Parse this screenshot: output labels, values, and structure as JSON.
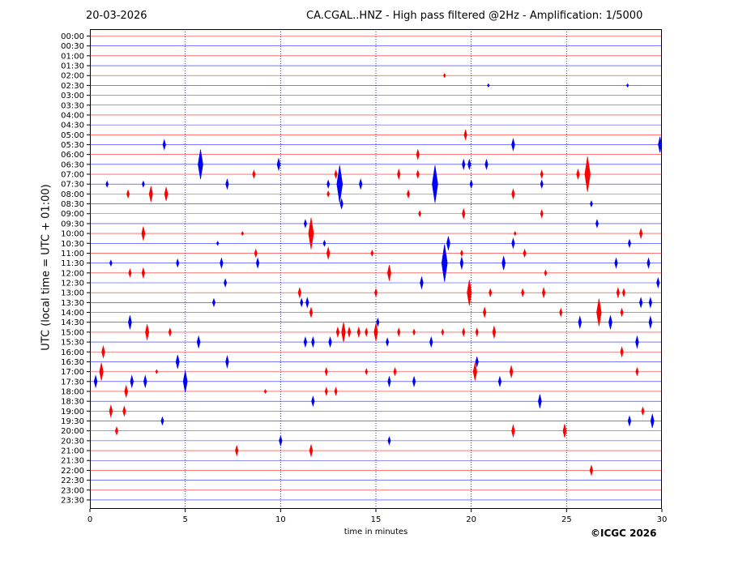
{
  "header": {
    "date": "20-03-2026",
    "title": "CA.CGAL..HNZ - High pass filtered @2Hz - Amplification: 1/5000"
  },
  "footer": {
    "copyright": "©ICGC 2026"
  },
  "chart_data": {
    "type": "line",
    "subtype": "helicorder",
    "xlabel": "time in minutes",
    "ylabel": "UTC (local time = UTC + 01:00)",
    "xlim": [
      0,
      30
    ],
    "xticks": [
      0,
      5,
      10,
      15,
      20,
      25,
      30
    ],
    "vertical_gridlines": [
      5,
      10,
      15,
      20,
      25
    ],
    "grid": true,
    "trace_colors": [
      "#ff0000",
      "#0000ff"
    ],
    "rows": [
      "00:00",
      "00:30",
      "01:00",
      "01:30",
      "02:00",
      "02:30",
      "03:00",
      "03:30",
      "04:00",
      "04:30",
      "05:00",
      "05:30",
      "06:00",
      "06:30",
      "07:00",
      "07:30",
      "08:00",
      "08:30",
      "09:00",
      "09:30",
      "10:00",
      "10:30",
      "11:00",
      "11:30",
      "12:00",
      "12:30",
      "13:00",
      "13:30",
      "14:00",
      "14:30",
      "15:00",
      "15:30",
      "16:00",
      "16:30",
      "17:00",
      "17:30",
      "18:00",
      "18:30",
      "19:00",
      "19:30",
      "20:00",
      "20:30",
      "21:00",
      "21:30",
      "22:00",
      "22:30",
      "23:00",
      "23:30"
    ],
    "events": [
      {
        "row": 4,
        "t": 18.6,
        "amp": 0.2
      },
      {
        "row": 5,
        "t": 20.9,
        "amp": 0.1
      },
      {
        "row": 5,
        "t": 28.2,
        "amp": 0.1
      },
      {
        "row": 10,
        "t": 19.7,
        "amp": 0.5
      },
      {
        "row": 11,
        "t": 3.9,
        "amp": 0.5
      },
      {
        "row": 11,
        "t": 22.2,
        "amp": 0.6
      },
      {
        "row": 11,
        "t": 29.9,
        "amp": 0.8
      },
      {
        "row": 12,
        "t": 17.2,
        "amp": 0.5
      },
      {
        "row": 13,
        "t": 5.8,
        "amp": 1.5
      },
      {
        "row": 13,
        "t": 9.9,
        "amp": 0.6
      },
      {
        "row": 13,
        "t": 19.6,
        "amp": 0.5
      },
      {
        "row": 13,
        "t": 19.9,
        "amp": 0.5
      },
      {
        "row": 13,
        "t": 20.8,
        "amp": 0.5
      },
      {
        "row": 14,
        "t": 8.6,
        "amp": 0.4
      },
      {
        "row": 14,
        "t": 12.9,
        "amp": 0.4
      },
      {
        "row": 14,
        "t": 16.2,
        "amp": 0.5
      },
      {
        "row": 14,
        "t": 17.2,
        "amp": 0.4
      },
      {
        "row": 14,
        "t": 23.7,
        "amp": 0.4
      },
      {
        "row": 14,
        "t": 25.6,
        "amp": 0.5
      },
      {
        "row": 14,
        "t": 26.1,
        "amp": 1.8
      },
      {
        "row": 15,
        "t": 0.9,
        "amp": 0.3
      },
      {
        "row": 15,
        "t": 2.8,
        "amp": 0.3
      },
      {
        "row": 15,
        "t": 7.2,
        "amp": 0.5
      },
      {
        "row": 15,
        "t": 12.5,
        "amp": 0.4
      },
      {
        "row": 15,
        "t": 13.1,
        "amp": 1.9
      },
      {
        "row": 15,
        "t": 14.2,
        "amp": 0.5
      },
      {
        "row": 15,
        "t": 18.1,
        "amp": 1.9
      },
      {
        "row": 15,
        "t": 20.0,
        "amp": 0.4
      },
      {
        "row": 15,
        "t": 23.7,
        "amp": 0.4
      },
      {
        "row": 16,
        "t": 2.0,
        "amp": 0.4
      },
      {
        "row": 16,
        "t": 3.2,
        "amp": 0.8
      },
      {
        "row": 16,
        "t": 4.0,
        "amp": 0.7
      },
      {
        "row": 16,
        "t": 12.5,
        "amp": 0.3
      },
      {
        "row": 16,
        "t": 16.7,
        "amp": 0.4
      },
      {
        "row": 16,
        "t": 22.2,
        "amp": 0.5
      },
      {
        "row": 17,
        "t": 13.2,
        "amp": 0.5
      },
      {
        "row": 17,
        "t": 26.3,
        "amp": 0.3
      },
      {
        "row": 18,
        "t": 17.3,
        "amp": 0.3
      },
      {
        "row": 18,
        "t": 19.6,
        "amp": 0.5
      },
      {
        "row": 18,
        "t": 23.7,
        "amp": 0.4
      },
      {
        "row": 19,
        "t": 11.3,
        "amp": 0.4
      },
      {
        "row": 19,
        "t": 26.6,
        "amp": 0.4
      },
      {
        "row": 20,
        "t": 2.8,
        "amp": 0.7
      },
      {
        "row": 20,
        "t": 8.0,
        "amp": 0.2
      },
      {
        "row": 20,
        "t": 11.6,
        "amp": 1.6
      },
      {
        "row": 20,
        "t": 22.3,
        "amp": 0.2
      },
      {
        "row": 20,
        "t": 28.9,
        "amp": 0.5
      },
      {
        "row": 21,
        "t": 6.7,
        "amp": 0.2
      },
      {
        "row": 21,
        "t": 12.3,
        "amp": 0.3
      },
      {
        "row": 21,
        "t": 18.8,
        "amp": 0.7
      },
      {
        "row": 21,
        "t": 22.2,
        "amp": 0.5
      },
      {
        "row": 21,
        "t": 28.3,
        "amp": 0.4
      },
      {
        "row": 22,
        "t": 8.7,
        "amp": 0.4
      },
      {
        "row": 22,
        "t": 12.5,
        "amp": 0.6
      },
      {
        "row": 22,
        "t": 14.8,
        "amp": 0.3
      },
      {
        "row": 22,
        "t": 19.5,
        "amp": 0.3
      },
      {
        "row": 22,
        "t": 22.8,
        "amp": 0.4
      },
      {
        "row": 23,
        "t": 1.1,
        "amp": 0.3
      },
      {
        "row": 23,
        "t": 4.6,
        "amp": 0.4
      },
      {
        "row": 23,
        "t": 6.9,
        "amp": 0.5
      },
      {
        "row": 23,
        "t": 8.8,
        "amp": 0.5
      },
      {
        "row": 23,
        "t": 18.6,
        "amp": 1.9
      },
      {
        "row": 23,
        "t": 19.5,
        "amp": 0.6
      },
      {
        "row": 23,
        "t": 21.7,
        "amp": 0.7
      },
      {
        "row": 23,
        "t": 27.6,
        "amp": 0.5
      },
      {
        "row": 23,
        "t": 29.3,
        "amp": 0.5
      },
      {
        "row": 24,
        "t": 2.1,
        "amp": 0.4
      },
      {
        "row": 24,
        "t": 2.8,
        "amp": 0.5
      },
      {
        "row": 24,
        "t": 15.7,
        "amp": 0.8
      },
      {
        "row": 24,
        "t": 23.9,
        "amp": 0.3
      },
      {
        "row": 25,
        "t": 7.1,
        "amp": 0.4
      },
      {
        "row": 25,
        "t": 17.4,
        "amp": 0.6
      },
      {
        "row": 25,
        "t": 29.8,
        "amp": 0.5
      },
      {
        "row": 26,
        "t": 11.0,
        "amp": 0.5
      },
      {
        "row": 26,
        "t": 15.0,
        "amp": 0.4
      },
      {
        "row": 26,
        "t": 19.9,
        "amp": 1.3
      },
      {
        "row": 26,
        "t": 21.0,
        "amp": 0.4
      },
      {
        "row": 26,
        "t": 22.7,
        "amp": 0.4
      },
      {
        "row": 26,
        "t": 23.8,
        "amp": 0.5
      },
      {
        "row": 26,
        "t": 27.7,
        "amp": 0.5
      },
      {
        "row": 26,
        "t": 28.0,
        "amp": 0.4
      },
      {
        "row": 27,
        "t": 6.5,
        "amp": 0.4
      },
      {
        "row": 27,
        "t": 11.1,
        "amp": 0.4
      },
      {
        "row": 27,
        "t": 11.4,
        "amp": 0.5
      },
      {
        "row": 27,
        "t": 28.9,
        "amp": 0.5
      },
      {
        "row": 27,
        "t": 29.4,
        "amp": 0.5
      },
      {
        "row": 28,
        "t": 11.6,
        "amp": 0.5
      },
      {
        "row": 28,
        "t": 20.7,
        "amp": 0.5
      },
      {
        "row": 28,
        "t": 24.7,
        "amp": 0.4
      },
      {
        "row": 28,
        "t": 26.7,
        "amp": 1.4
      },
      {
        "row": 28,
        "t": 27.9,
        "amp": 0.4
      },
      {
        "row": 29,
        "t": 2.1,
        "amp": 0.7
      },
      {
        "row": 29,
        "t": 15.1,
        "amp": 0.4
      },
      {
        "row": 29,
        "t": 25.7,
        "amp": 0.6
      },
      {
        "row": 29,
        "t": 27.3,
        "amp": 0.7
      },
      {
        "row": 29,
        "t": 29.4,
        "amp": 0.6
      },
      {
        "row": 30,
        "t": 3.0,
        "amp": 0.8
      },
      {
        "row": 30,
        "t": 4.2,
        "amp": 0.4
      },
      {
        "row": 30,
        "t": 13.0,
        "amp": 0.5
      },
      {
        "row": 30,
        "t": 13.3,
        "amp": 1.0
      },
      {
        "row": 30,
        "t": 13.6,
        "amp": 0.5
      },
      {
        "row": 30,
        "t": 14.1,
        "amp": 0.5
      },
      {
        "row": 30,
        "t": 14.5,
        "amp": 0.4
      },
      {
        "row": 30,
        "t": 15.0,
        "amp": 0.9
      },
      {
        "row": 30,
        "t": 16.2,
        "amp": 0.4
      },
      {
        "row": 30,
        "t": 17.0,
        "amp": 0.3
      },
      {
        "row": 30,
        "t": 18.5,
        "amp": 0.3
      },
      {
        "row": 30,
        "t": 19.6,
        "amp": 0.4
      },
      {
        "row": 30,
        "t": 20.3,
        "amp": 0.4
      },
      {
        "row": 30,
        "t": 21.2,
        "amp": 0.6
      },
      {
        "row": 31,
        "t": 5.7,
        "amp": 0.6
      },
      {
        "row": 31,
        "t": 11.3,
        "amp": 0.5
      },
      {
        "row": 31,
        "t": 11.7,
        "amp": 0.5
      },
      {
        "row": 31,
        "t": 12.6,
        "amp": 0.5
      },
      {
        "row": 31,
        "t": 15.6,
        "amp": 0.4
      },
      {
        "row": 31,
        "t": 17.9,
        "amp": 0.5
      },
      {
        "row": 31,
        "t": 28.7,
        "amp": 0.6
      },
      {
        "row": 32,
        "t": 0.7,
        "amp": 0.6
      },
      {
        "row": 32,
        "t": 27.9,
        "amp": 0.5
      },
      {
        "row": 33,
        "t": 4.6,
        "amp": 0.7
      },
      {
        "row": 33,
        "t": 7.2,
        "amp": 0.6
      },
      {
        "row": 33,
        "t": 20.3,
        "amp": 0.5
      },
      {
        "row": 34,
        "t": 0.6,
        "amp": 0.9
      },
      {
        "row": 34,
        "t": 3.5,
        "amp": 0.2
      },
      {
        "row": 34,
        "t": 12.4,
        "amp": 0.4
      },
      {
        "row": 34,
        "t": 14.5,
        "amp": 0.3
      },
      {
        "row": 34,
        "t": 16.0,
        "amp": 0.4
      },
      {
        "row": 34,
        "t": 20.2,
        "amp": 0.9
      },
      {
        "row": 34,
        "t": 22.1,
        "amp": 0.6
      },
      {
        "row": 34,
        "t": 28.7,
        "amp": 0.4
      },
      {
        "row": 35,
        "t": 0.3,
        "amp": 0.6
      },
      {
        "row": 35,
        "t": 2.2,
        "amp": 0.6
      },
      {
        "row": 35,
        "t": 2.9,
        "amp": 0.6
      },
      {
        "row": 35,
        "t": 5.0,
        "amp": 1.1
      },
      {
        "row": 35,
        "t": 15.7,
        "amp": 0.5
      },
      {
        "row": 35,
        "t": 17.0,
        "amp": 0.5
      },
      {
        "row": 35,
        "t": 21.5,
        "amp": 0.5
      },
      {
        "row": 36,
        "t": 1.9,
        "amp": 0.6
      },
      {
        "row": 36,
        "t": 9.2,
        "amp": 0.2
      },
      {
        "row": 36,
        "t": 12.4,
        "amp": 0.4
      },
      {
        "row": 36,
        "t": 12.9,
        "amp": 0.4
      },
      {
        "row": 37,
        "t": 11.7,
        "amp": 0.5
      },
      {
        "row": 37,
        "t": 23.6,
        "amp": 0.7
      },
      {
        "row": 38,
        "t": 1.1,
        "amp": 0.6
      },
      {
        "row": 38,
        "t": 1.8,
        "amp": 0.5
      },
      {
        "row": 38,
        "t": 29.0,
        "amp": 0.4
      },
      {
        "row": 39,
        "t": 3.8,
        "amp": 0.4
      },
      {
        "row": 39,
        "t": 28.3,
        "amp": 0.5
      },
      {
        "row": 39,
        "t": 29.5,
        "amp": 0.7
      },
      {
        "row": 40,
        "t": 1.4,
        "amp": 0.4
      },
      {
        "row": 40,
        "t": 22.2,
        "amp": 0.6
      },
      {
        "row": 40,
        "t": 24.9,
        "amp": 0.7
      },
      {
        "row": 41,
        "t": 10.0,
        "amp": 0.5
      },
      {
        "row": 41,
        "t": 15.7,
        "amp": 0.4
      },
      {
        "row": 42,
        "t": 7.7,
        "amp": 0.5
      },
      {
        "row": 42,
        "t": 11.6,
        "amp": 0.6
      },
      {
        "row": 44,
        "t": 26.3,
        "amp": 0.5
      }
    ]
  }
}
